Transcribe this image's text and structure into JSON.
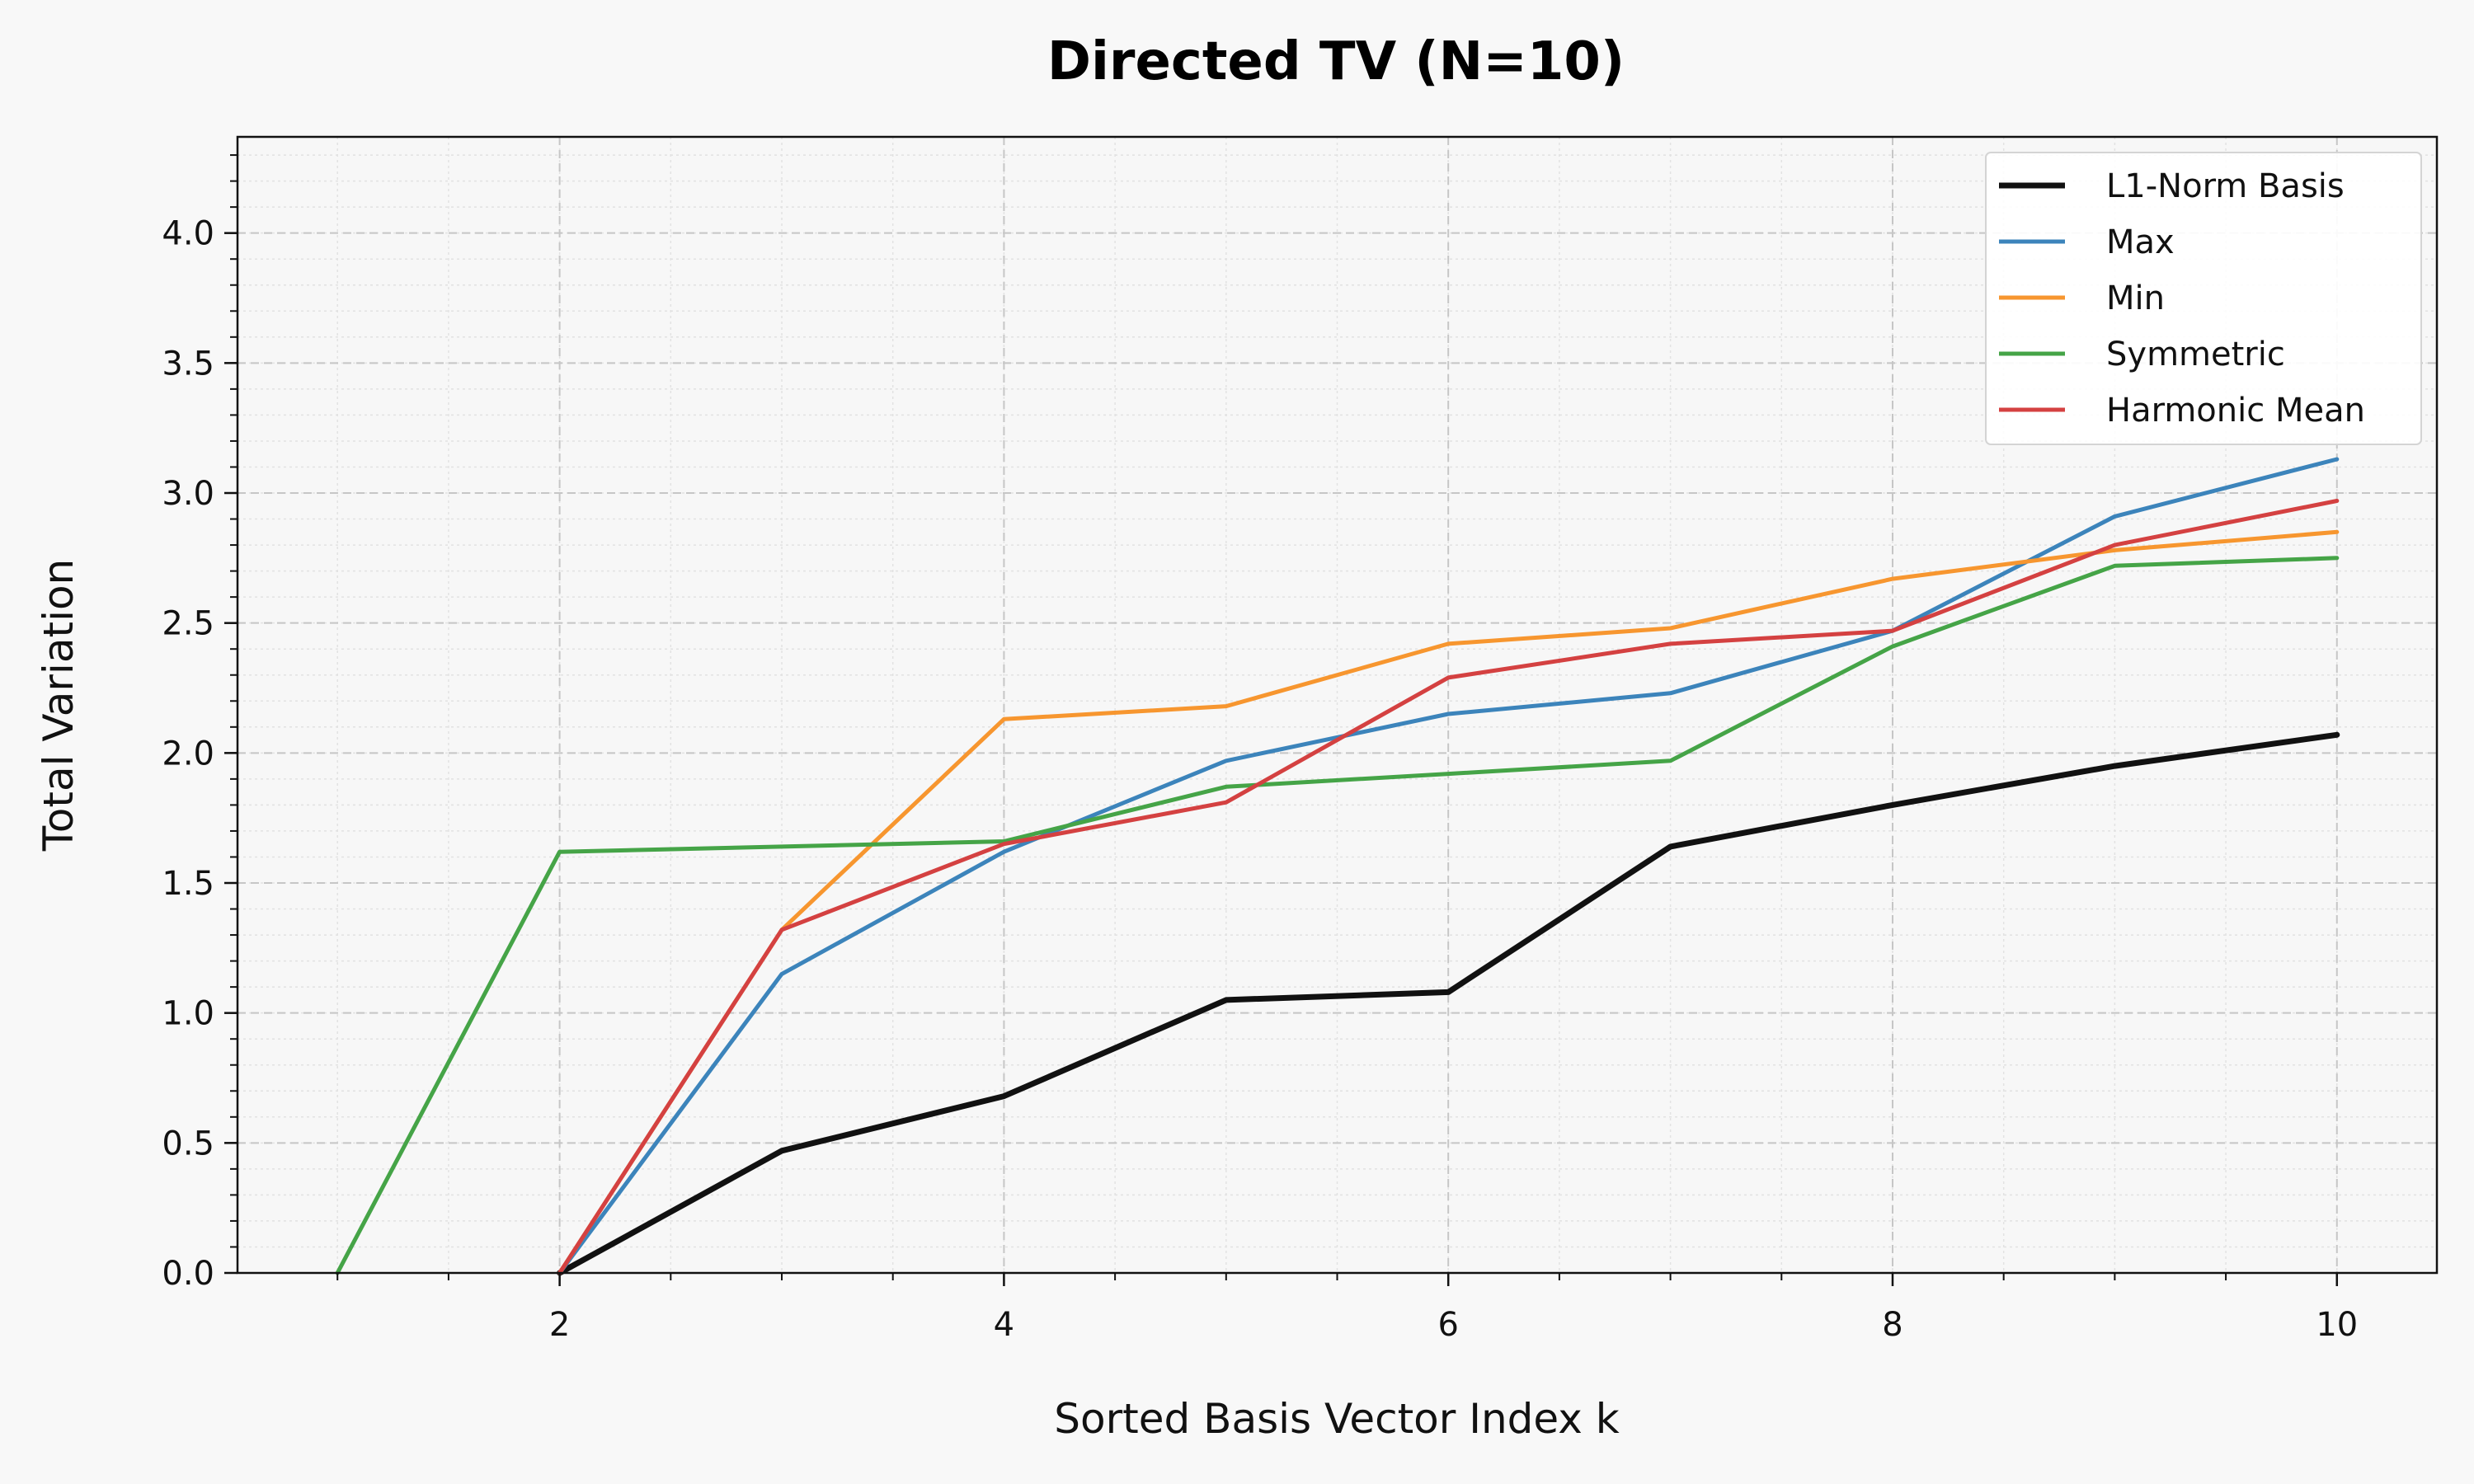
{
  "chart_data": {
    "type": "line",
    "title": "Directed TV (N=10)",
    "xlabel": "Sorted Basis Vector Index k",
    "ylabel": "Total Variation",
    "xlim": [
      0.55,
      10.45
    ],
    "ylim": [
      0,
      4.37
    ],
    "xticks": [
      2,
      4,
      6,
      8,
      10
    ],
    "xtick_labels": [
      "2",
      "4",
      "6",
      "8",
      "10"
    ],
    "yticks": [
      0,
      0.5,
      1,
      1.5,
      2,
      2.5,
      3,
      3.5,
      4
    ],
    "ytick_labels": [
      "0.0",
      "0.5",
      "1.0",
      "1.5",
      "2.0",
      "2.5",
      "3.0",
      "3.5",
      "4.0"
    ],
    "grid": true,
    "legend_position": "top-right",
    "x": [
      1,
      2,
      3,
      4,
      5,
      6,
      7,
      8,
      9,
      10
    ],
    "series": [
      {
        "name": "L1-Norm Basis",
        "color": "#111111",
        "values": [
          null,
          0.0,
          0.47,
          0.68,
          1.05,
          1.08,
          1.64,
          1.8,
          1.95,
          2.07
        ]
      },
      {
        "name": "Max",
        "color": "#3c84bb",
        "values": [
          null,
          0.0,
          1.15,
          1.62,
          1.97,
          2.15,
          2.23,
          2.47,
          2.91,
          3.13
        ]
      },
      {
        "name": "Min",
        "color": "#f7962f",
        "values": [
          null,
          0.0,
          1.32,
          2.13,
          2.18,
          2.42,
          2.48,
          2.67,
          2.78,
          2.85
        ]
      },
      {
        "name": "Symmetric",
        "color": "#45a447",
        "values": [
          0.0,
          1.62,
          1.64,
          1.66,
          1.87,
          1.92,
          1.97,
          2.41,
          2.72,
          2.75
        ]
      },
      {
        "name": "Harmonic Mean",
        "color": "#d44141",
        "values": [
          null,
          0.0,
          1.32,
          1.65,
          1.81,
          2.29,
          2.42,
          2.47,
          2.8,
          2.97
        ]
      }
    ]
  }
}
